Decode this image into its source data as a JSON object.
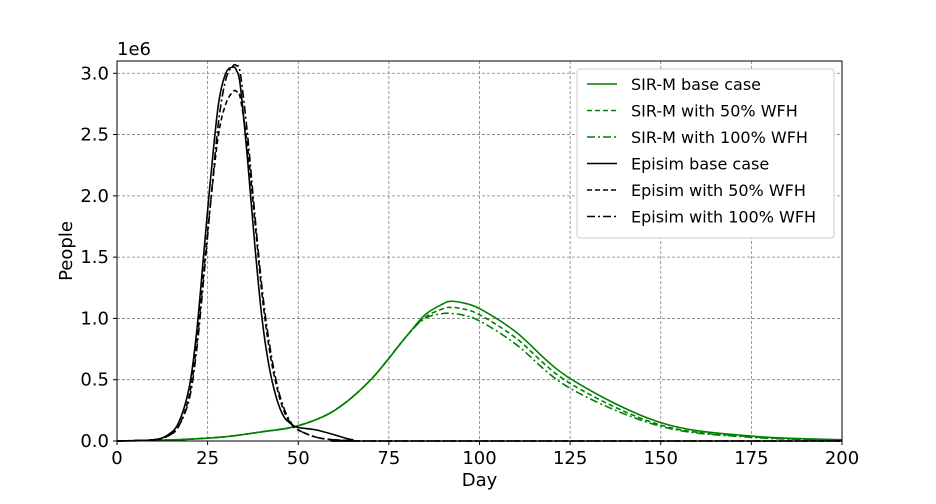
{
  "chart_data": {
    "type": "line",
    "xlabel": "Day",
    "ylabel": "People",
    "offset_label": "1e6",
    "xlim": [
      0,
      200
    ],
    "ylim": [
      0,
      3.1
    ],
    "xticks": [
      0,
      25,
      50,
      75,
      100,
      125,
      150,
      175,
      200
    ],
    "yticks": [
      0.0,
      0.5,
      1.0,
      1.5,
      2.0,
      2.5,
      3.0
    ],
    "xtick_labels": [
      "0",
      "25",
      "50",
      "75",
      "100",
      "125",
      "150",
      "175",
      "200"
    ],
    "ytick_labels": [
      "0.0",
      "0.5",
      "1.0",
      "1.5",
      "2.0",
      "2.5",
      "3.0"
    ],
    "grid": true,
    "legend_position": "top-right",
    "series": [
      {
        "name": "SIR-M base case",
        "color": "#008000",
        "style": "solid",
        "x": [
          0,
          10,
          20,
          30,
          40,
          50,
          60,
          70,
          80,
          85,
          90,
          92,
          95,
          100,
          110,
          125,
          150,
          175,
          200
        ],
        "y": [
          0.0,
          0.005,
          0.015,
          0.035,
          0.075,
          0.125,
          0.25,
          0.5,
          0.86,
          1.03,
          1.12,
          1.14,
          1.13,
          1.08,
          0.89,
          0.51,
          0.15,
          0.04,
          0.01
        ]
      },
      {
        "name": "SIR-M with 50% WFH",
        "color": "#008000",
        "style": "dashed",
        "x": [
          0,
          10,
          20,
          30,
          40,
          50,
          60,
          70,
          80,
          85,
          90,
          92,
          95,
          100,
          110,
          125,
          150,
          175,
          200
        ],
        "y": [
          0.0,
          0.005,
          0.015,
          0.035,
          0.075,
          0.125,
          0.25,
          0.5,
          0.86,
          1.01,
          1.08,
          1.09,
          1.08,
          1.03,
          0.84,
          0.47,
          0.13,
          0.035,
          0.008
        ]
      },
      {
        "name": "SIR-M with 100% WFH",
        "color": "#008000",
        "style": "dashdot",
        "x": [
          0,
          10,
          20,
          30,
          40,
          50,
          60,
          70,
          80,
          85,
          90,
          92,
          95,
          100,
          110,
          125,
          150,
          175,
          200
        ],
        "y": [
          0.0,
          0.005,
          0.015,
          0.035,
          0.075,
          0.125,
          0.25,
          0.5,
          0.86,
          1.0,
          1.04,
          1.04,
          1.03,
          0.98,
          0.79,
          0.43,
          0.12,
          0.03,
          0.007
        ]
      },
      {
        "name": "Episim base case",
        "color": "#000000",
        "style": "solid",
        "x": [
          0,
          10,
          14,
          17,
          20,
          22,
          24,
          26,
          28,
          30,
          32,
          33,
          34,
          36,
          38,
          40,
          42,
          44,
          46,
          48,
          50,
          55,
          60,
          65,
          70,
          200
        ],
        "y": [
          0.0,
          0.01,
          0.05,
          0.15,
          0.45,
          0.9,
          1.55,
          2.2,
          2.75,
          3.0,
          3.05,
          3.02,
          2.9,
          2.3,
          1.6,
          1.0,
          0.6,
          0.35,
          0.2,
          0.14,
          0.11,
          0.09,
          0.05,
          0.01,
          0.0,
          0.0
        ]
      },
      {
        "name": "Episim with 50% WFH",
        "color": "#000000",
        "style": "dashed",
        "x": [
          0,
          10,
          14,
          17,
          20,
          22,
          24,
          26,
          28,
          30,
          32,
          33,
          34,
          36,
          38,
          40,
          42,
          44,
          46,
          48,
          50,
          55,
          60,
          65,
          70,
          200
        ],
        "y": [
          0.0,
          0.01,
          0.04,
          0.12,
          0.38,
          0.8,
          1.4,
          2.0,
          2.5,
          2.75,
          2.85,
          2.85,
          2.8,
          2.4,
          1.8,
          1.2,
          0.75,
          0.45,
          0.25,
          0.14,
          0.09,
          0.03,
          0.01,
          0.0,
          0.0,
          0.0
        ]
      },
      {
        "name": "Episim with 100% WFH",
        "color": "#000000",
        "style": "dashdot",
        "x": [
          0,
          10,
          14,
          17,
          20,
          22,
          24,
          26,
          28,
          30,
          32,
          33,
          34,
          36,
          38,
          40,
          42,
          44,
          46,
          48,
          50,
          55,
          60,
          65,
          70,
          200
        ],
        "y": [
          0.0,
          0.01,
          0.04,
          0.12,
          0.35,
          0.75,
          1.35,
          2.0,
          2.6,
          2.95,
          3.06,
          3.06,
          3.0,
          2.5,
          1.85,
          1.25,
          0.8,
          0.48,
          0.27,
          0.15,
          0.09,
          0.03,
          0.01,
          0.0,
          0.0,
          0.0
        ]
      }
    ]
  }
}
